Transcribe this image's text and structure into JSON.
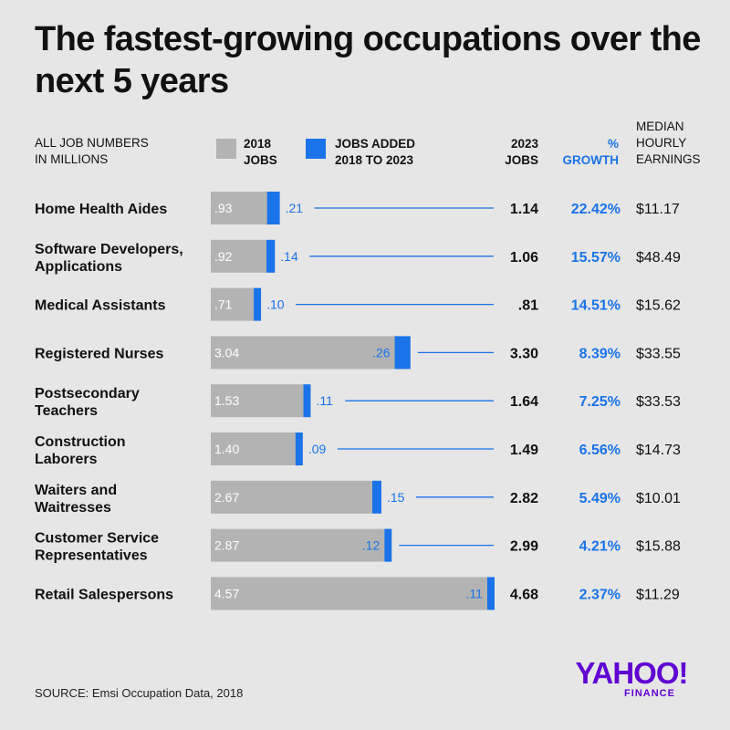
{
  "title": "The fastest-growing occupations over the next 5 years",
  "header": {
    "units_line1": "ALL JOB NUMBERS",
    "units_line2": "IN MILLIONS",
    "legend_base_line1": "2018",
    "legend_base_line2": "JOBS",
    "legend_added_line1": "JOBS ADDED",
    "legend_added_line2": "2018 TO 2023",
    "col_total_line1": "2023",
    "col_total_line2": "JOBS",
    "col_growth_line1": "%",
    "col_growth_line2": "GROWTH",
    "col_earn_line1": "MEDIAN",
    "col_earn_line2": "HOURLY",
    "col_earn_line3": "EARNINGS"
  },
  "colors": {
    "base": "#b3b3b3",
    "added": "#1a73e8",
    "growth": "#1a73e8",
    "background": "#e6e6e6"
  },
  "chart_data": {
    "type": "bar",
    "stacked": true,
    "orientation": "horizontal",
    "units": "millions",
    "categories": [
      [
        "Home Health Aides"
      ],
      [
        "Software Developers,",
        "Applications"
      ],
      [
        "Medical Assistants"
      ],
      [
        "Registered Nurses"
      ],
      [
        "Postsecondary",
        "Teachers"
      ],
      [
        "Construction",
        "Laborers"
      ],
      [
        "Waiters and",
        "Waitresses"
      ],
      [
        "Customer Service",
        "Representatives"
      ],
      [
        "Retail Salespersons"
      ]
    ],
    "series": [
      {
        "name": "2018 JOBS",
        "values": [
          0.93,
          0.92,
          0.71,
          3.04,
          1.53,
          1.4,
          2.67,
          2.87,
          4.57
        ],
        "labels": [
          ".93",
          ".92",
          ".71",
          "3.04",
          "1.53",
          "1.40",
          "2.67",
          "2.87",
          "4.57"
        ]
      },
      {
        "name": "JOBS ADDED 2018 TO 2023",
        "values": [
          0.21,
          0.14,
          0.1,
          0.26,
          0.11,
          0.09,
          0.15,
          0.12,
          0.11
        ],
        "labels": [
          ".21",
          ".14",
          ".10",
          ".26",
          ".11",
          ".09",
          ".15",
          ".12",
          ".11"
        ]
      }
    ],
    "totals_2023": [
      "1.14",
      "1.06",
      ".81",
      "3.30",
      "1.64",
      "1.49",
      "2.82",
      "2.99",
      "4.68"
    ],
    "growth_pct": [
      "22.42%",
      "15.57%",
      "14.51%",
      "8.39%",
      "7.25%",
      "6.56%",
      "5.49%",
      "4.21%",
      "2.37%"
    ],
    "median_hourly_earnings": [
      "$11.17",
      "$48.49",
      "$15.62",
      "$33.55",
      "$33.53",
      "$14.73",
      "$10.01",
      "$15.88",
      "$11.29"
    ],
    "xlim": [
      0,
      4.68
    ]
  },
  "source": "SOURCE: Emsi Occupation Data, 2018",
  "logo": {
    "main": "YAHOO!",
    "sub": "FINANCE"
  }
}
